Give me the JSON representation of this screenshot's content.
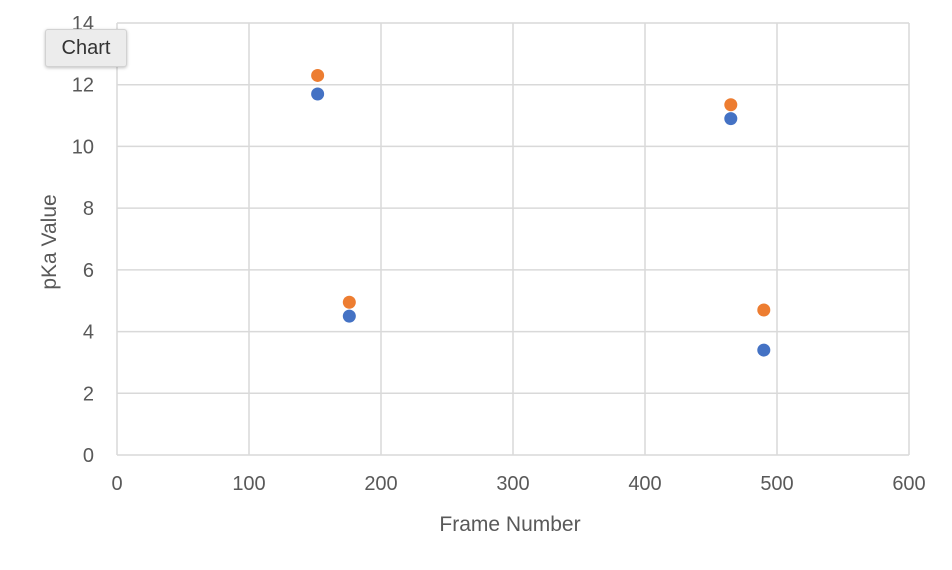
{
  "chart_tag": {
    "label": "Chart"
  },
  "chart_data": {
    "type": "scatter",
    "title": "",
    "xlabel": "Frame Number",
    "ylabel": "pKa Value",
    "xlim": [
      0,
      600
    ],
    "ylim": [
      0,
      14
    ],
    "xticks": [
      0,
      100,
      200,
      300,
      400,
      500,
      600
    ],
    "yticks": [
      0,
      2,
      4,
      6,
      8,
      10,
      12,
      14
    ],
    "grid": true,
    "legend": "none",
    "series": [
      {
        "color": "#4472C4",
        "points": [
          {
            "x": 152,
            "y": 11.7
          },
          {
            "x": 176,
            "y": 4.5
          },
          {
            "x": 465,
            "y": 10.9
          },
          {
            "x": 490,
            "y": 3.4
          }
        ]
      },
      {
        "color": "#ED7D31",
        "points": [
          {
            "x": 152,
            "y": 12.3
          },
          {
            "x": 176,
            "y": 4.95
          },
          {
            "x": 465,
            "y": 11.35
          },
          {
            "x": 490,
            "y": 4.7
          }
        ]
      }
    ]
  }
}
